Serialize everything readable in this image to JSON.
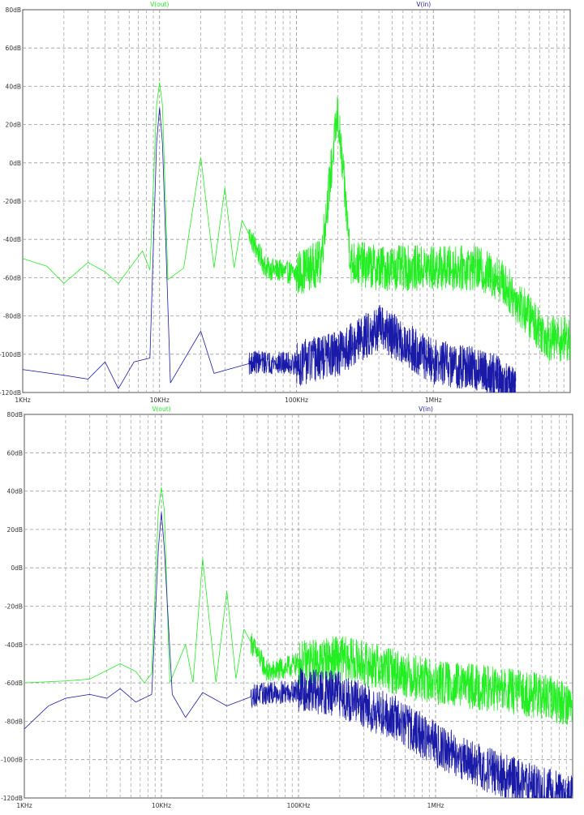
{
  "chart_data": [
    {
      "type": "line",
      "x_scale": "log",
      "xlim": [
        "1KHz",
        "10MHz"
      ],
      "ylim": [
        -120,
        80
      ],
      "y_unit": "dB",
      "grid": true,
      "legend_placement": "top",
      "xtick_labels": [
        "1KHz",
        "10KHz",
        "100KHz",
        "1MHz"
      ],
      "ytick_labels": [
        "80dB",
        "60dB",
        "40dB",
        "20dB",
        "0dB",
        "-20dB",
        "-40dB",
        "-60dB",
        "-80dB",
        "-100dB",
        "-120dB"
      ],
      "series": [
        {
          "name": "V(out)",
          "color": "#22ee22",
          "points": [
            [
              "1KHz",
              -50
            ],
            [
              "1.5KHz",
              -54
            ],
            [
              "2KHz",
              -63
            ],
            [
              "3KHz",
              -52
            ],
            [
              "4KHz",
              -57
            ],
            [
              "5KHz",
              -63
            ],
            [
              "6.5KHz",
              -52
            ],
            [
              "7.5KHz",
              -46
            ],
            [
              "8.5KHz",
              -56
            ],
            [
              "9.5KHz",
              30
            ],
            [
              "10KHz",
              42
            ],
            [
              "10.5KHz",
              30
            ],
            [
              "11.5KHz",
              -61
            ],
            [
              "15KHz",
              -55
            ],
            [
              "20KHz",
              3
            ],
            [
              "25KHz",
              -55
            ],
            [
              "30KHz",
              -13
            ],
            [
              "35KHz",
              -55
            ],
            [
              "40KHz",
              -30
            ],
            [
              "60KHz",
              -55
            ],
            [
              "100KHz",
              -58
            ],
            [
              "150KHz",
              -52
            ],
            [
              "200KHz",
              26
            ],
            [
              "250KHz",
              -52
            ],
            [
              "400KHz",
              -55
            ],
            [
              "1MHz",
              -55
            ],
            [
              "2MHz",
              -55
            ],
            [
              "3MHz",
              -60
            ],
            [
              "5MHz",
              -80
            ],
            [
              "7MHz",
              -92
            ],
            [
              "10MHz",
              -92
            ]
          ]
        },
        {
          "name": "V(in)",
          "color": "#1a1aa8",
          "points": [
            [
              "1KHz",
              -108
            ],
            [
              "2KHz",
              -111
            ],
            [
              "3KHz",
              -113
            ],
            [
              "4KHz",
              -104
            ],
            [
              "5KHz",
              -118
            ],
            [
              "6.5KHz",
              -104
            ],
            [
              "8.5KHz",
              -102
            ],
            [
              "9.5KHz",
              10
            ],
            [
              "10KHz",
              29
            ],
            [
              "10.5KHz",
              10
            ],
            [
              "12KHz",
              -115
            ],
            [
              "20KHz",
              -88
            ],
            [
              "25KHz",
              -110
            ],
            [
              "50KHz",
              -104
            ],
            [
              "100KHz",
              -105
            ],
            [
              "200KHz",
              -100
            ],
            [
              "400KHz",
              -86
            ],
            [
              "1MHz",
              -104
            ],
            [
              "2MHz",
              -108
            ],
            [
              "3MHz",
              -112
            ],
            [
              "4MHz",
              -120
            ]
          ]
        }
      ]
    },
    {
      "type": "line",
      "x_scale": "log",
      "xlim": [
        "1KHz",
        "10MHz"
      ],
      "ylim": [
        -120,
        80
      ],
      "y_unit": "dB",
      "grid": true,
      "legend_placement": "top",
      "xtick_labels": [
        "1KHz",
        "10KHz",
        "100KHz",
        "1MHz"
      ],
      "ytick_labels": [
        "80dB",
        "60dB",
        "40dB",
        "20dB",
        "0dB",
        "-20dB",
        "-40dB",
        "-60dB",
        "-80dB",
        "-100dB",
        "-120dB"
      ],
      "series": [
        {
          "name": "V(out)",
          "color": "#22ee22",
          "points": [
            [
              "1KHz",
              -60
            ],
            [
              "2KHz",
              -59
            ],
            [
              "3KHz",
              -58
            ],
            [
              "5KHz",
              -50
            ],
            [
              "6.5KHz",
              -54
            ],
            [
              "7.5KHz",
              -60
            ],
            [
              "8.5KHz",
              -55
            ],
            [
              "9.5KHz",
              30
            ],
            [
              "10KHz",
              42
            ],
            [
              "10.5KHz",
              30
            ],
            [
              "11.5KHz",
              -60
            ],
            [
              "15KHz",
              -40
            ],
            [
              "17KHz",
              -60
            ],
            [
              "20KHz",
              5
            ],
            [
              "25KHz",
              -60
            ],
            [
              "30KHz",
              -12
            ],
            [
              "35KHz",
              -58
            ],
            [
              "40KHz",
              -32
            ],
            [
              "60KHz",
              -55
            ],
            [
              "100KHz",
              -50
            ],
            [
              "200KHz",
              -47
            ],
            [
              "400KHz",
              -52
            ],
            [
              "1MHz",
              -60
            ],
            [
              "2MHz",
              -62
            ],
            [
              "5MHz",
              -66
            ],
            [
              "10MHz",
              -71
            ]
          ]
        },
        {
          "name": "V(in)",
          "color": "#1a1aa8",
          "points": [
            [
              "1KHz",
              -84
            ],
            [
              "1.5KHz",
              -72
            ],
            [
              "2KHz",
              -68
            ],
            [
              "3KHz",
              -66
            ],
            [
              "4KHz",
              -68
            ],
            [
              "5KHz",
              -63
            ],
            [
              "6.5KHz",
              -70
            ],
            [
              "8.5KHz",
              -66
            ],
            [
              "9.5KHz",
              10
            ],
            [
              "10KHz",
              29
            ],
            [
              "10.5KHz",
              10
            ],
            [
              "12KHz",
              -66
            ],
            [
              "15KHz",
              -78
            ],
            [
              "20KHz",
              -65
            ],
            [
              "30KHz",
              -72
            ],
            [
              "50KHz",
              -66
            ],
            [
              "100KHz",
              -64
            ],
            [
              "200KHz",
              -66
            ],
            [
              "300KHz",
              -72
            ],
            [
              "500KHz",
              -78
            ],
            [
              "1MHz",
              -92
            ],
            [
              "2MHz",
              -103
            ],
            [
              "5MHz",
              -114
            ],
            [
              "10MHz",
              -120
            ]
          ]
        }
      ]
    }
  ]
}
